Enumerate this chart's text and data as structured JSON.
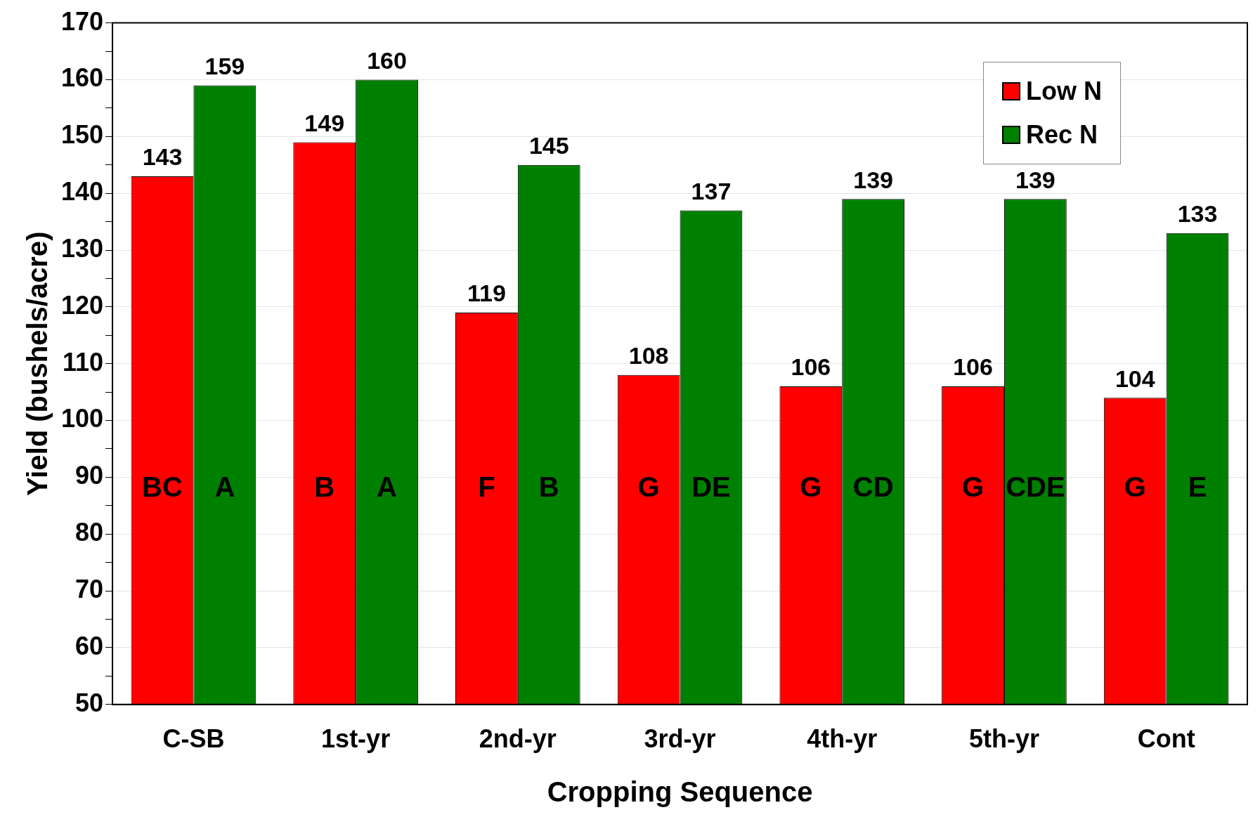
{
  "chart_data": {
    "type": "bar",
    "xlabel": "Cropping Sequence",
    "ylabel": "Yield (bushels/acre)",
    "categories": [
      "C-SB",
      "1st-yr",
      "2nd-yr",
      "3rd-yr",
      "4th-yr",
      "5th-yr",
      "Cont"
    ],
    "series": [
      {
        "name": "Low N",
        "color": "#ff0000",
        "values": [
          143,
          149,
          119,
          108,
          106,
          106,
          104
        ]
      },
      {
        "name": "Rec N",
        "color": "#008000",
        "values": [
          159,
          160,
          145,
          137,
          139,
          139,
          133
        ]
      }
    ],
    "ylim": [
      50,
      170
    ],
    "yticks": [
      50,
      {
        "value": 55,
        "label": null
      },
      60,
      {
        "value": 65,
        "label": null
      },
      70,
      {
        "value": 75,
        "label": null
      },
      80,
      {
        "value": 85,
        "label": null
      },
      90,
      {
        "value": 95,
        "label": null
      },
      100,
      {
        "value": 105,
        "label": null
      },
      110,
      {
        "value": 115,
        "label": null
      },
      120,
      {
        "value": 125,
        "label": null
      },
      130,
      {
        "value": 135,
        "label": null
      },
      140,
      {
        "value": 145,
        "label": null
      },
      150,
      {
        "value": 155,
        "label": null
      },
      160,
      {
        "value": 165,
        "label": null
      },
      170
    ],
    "grid": "y",
    "legend": "top right",
    "data_labels": true,
    "annotations": [
      {
        "text": "BC",
        "x": "C-SB",
        "y": 88
      },
      {
        "text": "A",
        "x": "C-SB",
        "y": 88
      },
      {
        "text": "B",
        "x": "1st-yr",
        "y": 88
      },
      {
        "text": "A",
        "x": "1st-yr",
        "y": 88
      },
      {
        "text": "F",
        "x": "2nd-yr",
        "y": 88
      },
      {
        "text": "B",
        "x": "2nd-yr",
        "y": 88
      },
      {
        "text": "G",
        "x": "3rd-yr",
        "y": 88
      },
      {
        "text": "DE",
        "x": "3rd-yr",
        "y": 88
      },
      {
        "text": "G",
        "x": "4th-yr",
        "y": 88
      },
      {
        "text": "CD",
        "x": "4th-yr",
        "y": 88
      },
      {
        "text": "G",
        "x": "5th-yr",
        "y": 88
      },
      {
        "text": "CDE",
        "x": "5th-yr",
        "y": 88
      },
      {
        "text": "G",
        "x": "Cont",
        "y": 88
      },
      {
        "text": "E",
        "x": "Cont",
        "y": 88
      }
    ]
  }
}
